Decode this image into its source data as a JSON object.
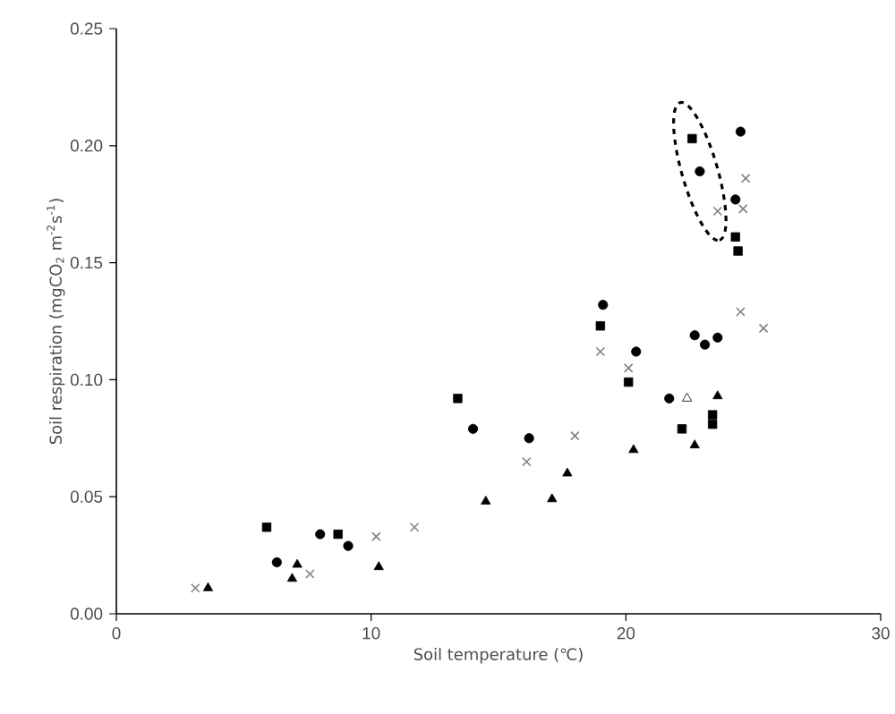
{
  "chart_data": {
    "type": "scatter",
    "xlabel": "Soil temperature (℃)",
    "ylabel": "Soil respiration (mgCO$_{2}$ m$^{-2}$s$^{-1}$)",
    "xlim": [
      0,
      30
    ],
    "ylim": [
      0,
      0.25
    ],
    "xticks": [
      0,
      10,
      20,
      30
    ],
    "yticks": [
      {
        "value": 0,
        "label": "0.00"
      },
      {
        "value": 0.05,
        "label": "0.05"
      },
      {
        "value": 0.1,
        "label": "0.10"
      },
      {
        "value": 0.15,
        "label": "0.15"
      },
      {
        "value": 0.2,
        "label": "0.20"
      },
      {
        "value": 0.25,
        "label": "0.25"
      }
    ],
    "grid": false,
    "series": [
      {
        "marker": "circle",
        "color": "#000000",
        "x": [
          6.3,
          8.0,
          9.1,
          14.0,
          16.2,
          19.1,
          20.4,
          21.7,
          22.7,
          23.1,
          23.6,
          22.9,
          24.3,
          24.5
        ],
        "values": [
          0.022,
          0.034,
          0.029,
          0.079,
          0.075,
          0.132,
          0.112,
          0.092,
          0.119,
          0.115,
          0.118,
          0.189,
          0.177,
          0.206
        ]
      },
      {
        "marker": "square",
        "color": "#000000",
        "x": [
          5.9,
          8.7,
          13.4,
          19.0,
          20.1,
          22.2,
          23.4,
          23.4,
          22.6,
          24.3,
          24.4
        ],
        "values": [
          0.037,
          0.034,
          0.092,
          0.123,
          0.099,
          0.079,
          0.085,
          0.081,
          0.203,
          0.161,
          0.155
        ]
      },
      {
        "marker": "triangle",
        "color": "#000000",
        "x": [
          3.6,
          6.9,
          7.1,
          10.3,
          14.5,
          17.1,
          17.7,
          20.3,
          22.7,
          23.6
        ],
        "values": [
          0.011,
          0.015,
          0.021,
          0.02,
          0.048,
          0.049,
          0.06,
          0.07,
          0.072,
          0.093
        ]
      },
      {
        "marker": "triangle",
        "color": "#ffffff",
        "x": [
          22.4
        ],
        "values": [
          0.092
        ]
      },
      {
        "marker": "cross",
        "color": "#808080",
        "x": [
          3.1,
          7.6,
          10.2,
          11.7,
          16.1,
          18.0,
          19.0,
          20.1,
          23.6,
          24.6,
          24.7,
          24.5,
          25.4
        ],
        "values": [
          0.011,
          0.017,
          0.033,
          0.037,
          0.065,
          0.076,
          0.112,
          0.105,
          0.172,
          0.173,
          0.186,
          0.129,
          0.122
        ]
      }
    ]
  }
}
